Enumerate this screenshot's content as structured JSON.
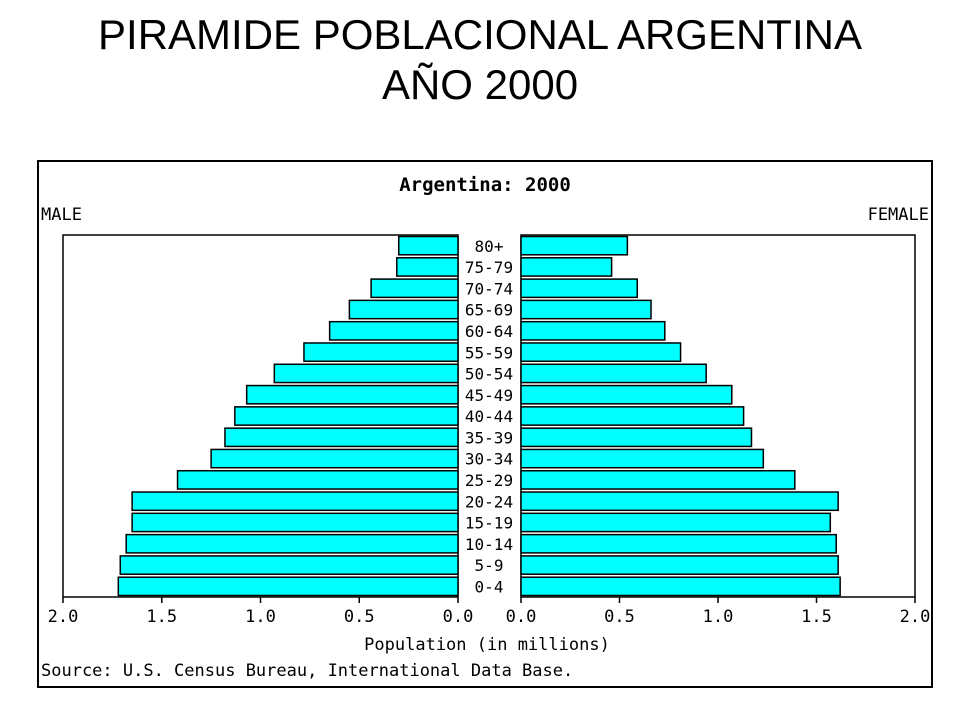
{
  "slide": {
    "title_line1": "PIRAMIDE POBLACIONAL ARGENTINA",
    "title_line2": "AÑO 2000"
  },
  "chart_data": {
    "type": "bar",
    "orientation": "horizontal-pyramid",
    "title": "Argentina: 2000",
    "xlabel": "Population (in millions)",
    "source": "Source: U.S. Census Bureau, International Data Base.",
    "left_label": "MALE",
    "right_label": "FEMALE",
    "xlim": [
      0,
      2.0
    ],
    "ticks": [
      "2.0",
      "1.5",
      "1.0",
      "0.5",
      "0.0"
    ],
    "ticks_right": [
      "0.0",
      "0.5",
      "1.0",
      "1.5",
      "2.0"
    ],
    "categories": [
      "80+",
      "75-79",
      "70-74",
      "65-69",
      "60-64",
      "55-59",
      "50-54",
      "45-49",
      "40-44",
      "35-39",
      "30-34",
      "25-29",
      "20-24",
      "15-19",
      "10-14",
      "5-9",
      "0-4"
    ],
    "series": [
      {
        "name": "MALE",
        "values": [
          0.3,
          0.31,
          0.44,
          0.55,
          0.65,
          0.78,
          0.93,
          1.07,
          1.13,
          1.18,
          1.25,
          1.42,
          1.65,
          1.65,
          1.68,
          1.71,
          1.72
        ]
      },
      {
        "name": "FEMALE",
        "values": [
          0.54,
          0.46,
          0.59,
          0.66,
          0.73,
          0.81,
          0.94,
          1.07,
          1.13,
          1.17,
          1.23,
          1.39,
          1.61,
          1.57,
          1.6,
          1.61,
          1.62
        ]
      }
    ],
    "bar_color": "#00ffff",
    "bar_edge_color": "#000000"
  }
}
